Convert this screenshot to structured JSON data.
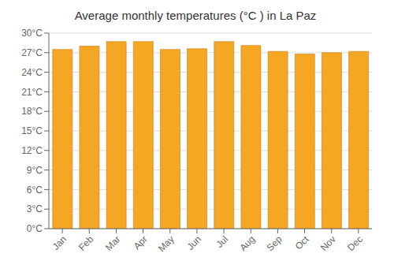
{
  "chart_data": {
    "type": "bar",
    "title": "Average monthly temperatures (°C ) in La Paz",
    "categories": [
      "Jan",
      "Feb",
      "Mar",
      "Apr",
      "May",
      "Jun",
      "Jul",
      "Aug",
      "Sep",
      "Oct",
      "Nov",
      "Dec"
    ],
    "values": [
      27.5,
      28.0,
      28.7,
      28.7,
      27.5,
      27.6,
      28.7,
      28.1,
      27.2,
      26.8,
      27.0,
      27.2
    ],
    "color": "#F5A623",
    "ylim": [
      0,
      30
    ],
    "yticks": [
      {
        "value": 0,
        "label": "0°C"
      },
      {
        "value": 3,
        "label": "3°C"
      },
      {
        "value": 6,
        "label": "6°C"
      },
      {
        "value": 9,
        "label": "9°C"
      },
      {
        "value": 12,
        "label": "12°C"
      },
      {
        "value": 15,
        "label": "15°C"
      },
      {
        "value": 18,
        "label": "18°C"
      },
      {
        "value": 21,
        "label": "21°C"
      },
      {
        "value": 24,
        "label": "24°C"
      },
      {
        "value": 27,
        "label": "27°C"
      },
      {
        "value": 30,
        "label": "30°C"
      }
    ],
    "grid": true
  }
}
